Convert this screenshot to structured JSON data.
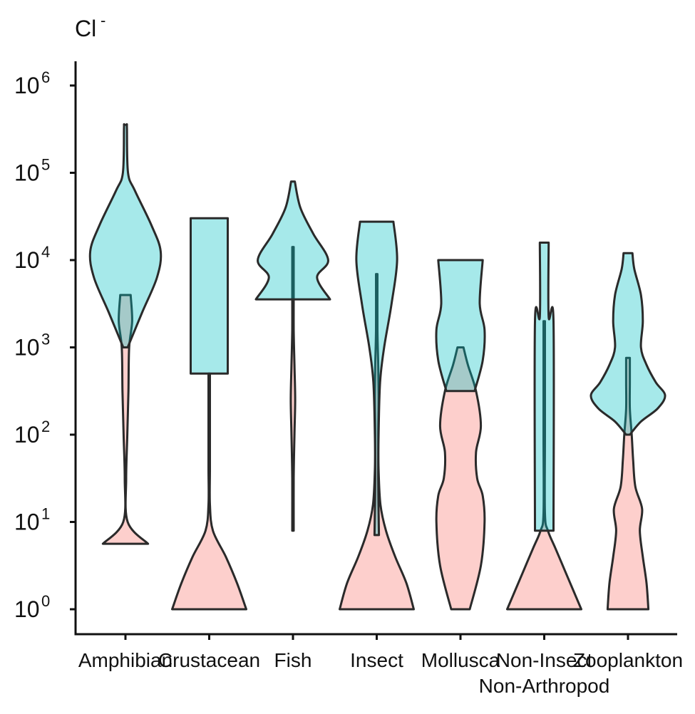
{
  "chart_data": {
    "type": "violin",
    "title": "Cl",
    "title_superscript": "-",
    "xlabel": "",
    "ylabel": "",
    "y_scale": "log10",
    "ylim": [
      1,
      1000000
    ],
    "y_ticks": [
      {
        "value": 1,
        "base": "10",
        "exp": "0"
      },
      {
        "value": 10,
        "base": "10",
        "exp": "1"
      },
      {
        "value": 100,
        "base": "10",
        "exp": "2"
      },
      {
        "value": 1000,
        "base": "10",
        "exp": "3"
      },
      {
        "value": 10000,
        "base": "10",
        "exp": "4"
      },
      {
        "value": 100000,
        "base": "10",
        "exp": "5"
      },
      {
        "value": 1000000,
        "base": "10",
        "exp": "6"
      }
    ],
    "categories": [
      {
        "label": "Amphibian",
        "label2": ""
      },
      {
        "label": "Crustacean",
        "label2": ""
      },
      {
        "label": "Fish",
        "label2": ""
      },
      {
        "label": "Insect",
        "label2": ""
      },
      {
        "label": "Mollusca",
        "label2": ""
      },
      {
        "label": "Non-Insect",
        "label2": "Non-Arthropod"
      },
      {
        "label": "Zooplankton",
        "label2": ""
      }
    ],
    "legend": "none",
    "colors": {
      "series_a": "#F8766D",
      "series_b": "#00BFC4",
      "outline": "#2a2a2a"
    },
    "series": [
      {
        "color": "#F8766D",
        "violins": [
          [
            [
              0.75,
              0.61
            ],
            [
              1.0,
              0.06
            ],
            [
              1.5,
              0.02
            ],
            [
              2.0,
              0.05
            ],
            [
              2.5,
              0.08
            ],
            [
              3.0,
              0.1
            ],
            [
              3.3,
              0.18
            ],
            [
              3.6,
              0.14
            ]
          ],
          [
            [
              0,
              1
            ],
            [
              0.3,
              0.75
            ],
            [
              0.6,
              0.45
            ],
            [
              0.9,
              0.1
            ],
            [
              1.2,
              0.02
            ],
            [
              1.6,
              0.02
            ],
            [
              2.0,
              0.02
            ],
            [
              2.4,
              0.02
            ],
            [
              2.7,
              0.02
            ]
          ],
          [
            [
              0.9,
              0.02
            ],
            [
              1.5,
              0.02
            ],
            [
              2.0,
              0.04
            ],
            [
              2.4,
              0.06
            ],
            [
              2.8,
              0.04
            ],
            [
              3.2,
              0.02
            ],
            [
              3.6,
              0.02
            ],
            [
              4.15,
              0.02
            ]
          ],
          [
            [
              0,
              1
            ],
            [
              0.3,
              0.8
            ],
            [
              0.6,
              0.5
            ],
            [
              0.9,
              0.25
            ],
            [
              1.2,
              0.1
            ],
            [
              1.6,
              0.05
            ],
            [
              2.0,
              0.04
            ],
            [
              2.4,
              0.05
            ],
            [
              2.8,
              0.04
            ],
            [
              3.2,
              0.02
            ],
            [
              3.84,
              0.02
            ]
          ],
          [
            [
              0,
              0.25
            ],
            [
              0.5,
              0.55
            ],
            [
              1.0,
              0.65
            ],
            [
              1.3,
              0.6
            ],
            [
              1.5,
              0.45
            ],
            [
              1.8,
              0.42
            ],
            [
              2.1,
              0.55
            ],
            [
              2.5,
              0.42
            ],
            [
              2.8,
              0.2
            ],
            [
              3.0,
              0.08
            ]
          ],
          [
            [
              0,
              1
            ],
            [
              0.2,
              0.8
            ],
            [
              0.45,
              0.55
            ],
            [
              0.7,
              0.3
            ],
            [
              0.9,
              0.1
            ],
            [
              1.1,
              0.02
            ],
            [
              2.0,
              0.02
            ],
            [
              3.3,
              0.02
            ]
          ],
          [
            [
              0,
              0.55
            ],
            [
              0.3,
              0.5
            ],
            [
              0.6,
              0.4
            ],
            [
              0.9,
              0.32
            ],
            [
              1.15,
              0.38
            ],
            [
              1.4,
              0.2
            ],
            [
              1.7,
              0.14
            ],
            [
              2.0,
              0.1
            ],
            [
              2.3,
              0.05
            ],
            [
              2.6,
              0.05
            ],
            [
              2.88,
              0.05
            ]
          ]
        ]
      },
      {
        "color": "#00BFC4",
        "violins": [
          [
            [
              3.0,
              0.06
            ],
            [
              3.4,
              0.45
            ],
            [
              3.8,
              0.85
            ],
            [
              4.1,
              0.95
            ],
            [
              4.4,
              0.7
            ],
            [
              4.8,
              0.25
            ],
            [
              5.0,
              0.07
            ],
            [
              5.5,
              0.04
            ],
            [
              5.55,
              0.04
            ]
          ],
          [
            [
              2.7,
              0.5
            ],
            [
              4.48,
              0.5
            ]
          ],
          [
            [
              3.55,
              1
            ],
            [
              3.8,
              0.65
            ],
            [
              4.0,
              0.95
            ],
            [
              4.3,
              0.55
            ],
            [
              4.6,
              0.2
            ],
            [
              4.9,
              0.05
            ]
          ],
          [
            [
              0.85,
              0.06
            ],
            [
              1.5,
              0.04
            ],
            [
              2.0,
              0.05
            ],
            [
              2.6,
              0.09
            ],
            [
              3.0,
              0.2
            ],
            [
              3.5,
              0.4
            ],
            [
              4.0,
              0.55
            ],
            [
              4.44,
              0.45
            ]
          ],
          [
            [
              2.5,
              0.38
            ],
            [
              2.85,
              0.6
            ],
            [
              3.2,
              0.65
            ],
            [
              3.5,
              0.52
            ],
            [
              4.0,
              0.6
            ]
          ],
          [
            [
              0.9,
              0.25
            ],
            [
              3.3,
              0.25
            ],
            [
              3.35,
              0.12
            ],
            [
              4.2,
              0.12
            ]
          ],
          [
            [
              2.0,
              0.05
            ],
            [
              2.15,
              0.35
            ],
            [
              2.3,
              0.8
            ],
            [
              2.45,
              1
            ],
            [
              2.6,
              0.75
            ],
            [
              2.8,
              0.5
            ],
            [
              3.0,
              0.35
            ],
            [
              3.3,
              0.4
            ],
            [
              3.6,
              0.35
            ],
            [
              3.9,
              0.17
            ],
            [
              4.08,
              0.12
            ]
          ]
        ]
      }
    ]
  }
}
